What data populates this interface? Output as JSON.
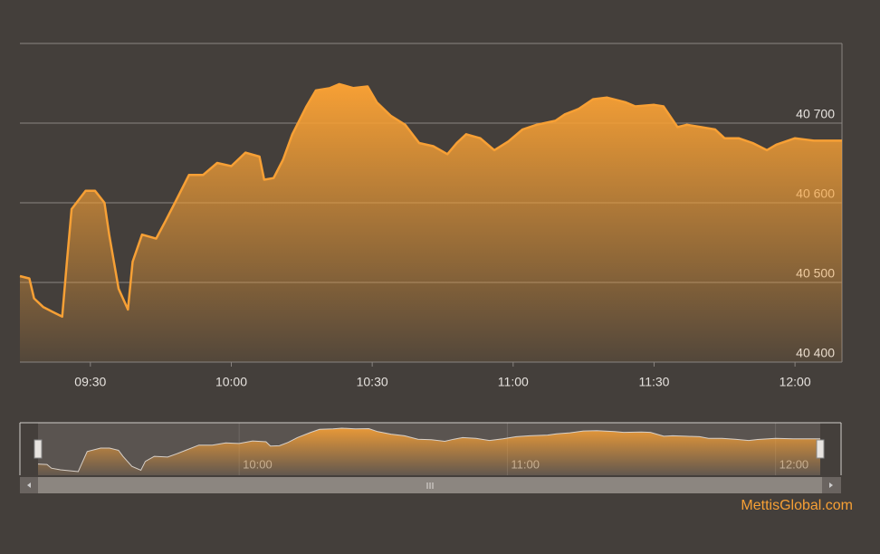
{
  "chart_data": {
    "type": "area",
    "x": [
      "09:15",
      "09:17",
      "09:18",
      "09:20",
      "09:22",
      "09:24",
      "09:25",
      "09:26",
      "09:29",
      "09:31",
      "09:33",
      "09:34",
      "09:36",
      "09:38",
      "09:39",
      "09:41",
      "09:44",
      "09:46",
      "09:48",
      "09:51",
      "09:54",
      "09:57",
      "10:00",
      "10:03",
      "10:06",
      "10:07",
      "10:09",
      "10:11",
      "10:13",
      "10:16",
      "10:18",
      "10:21",
      "10:23",
      "10:26",
      "10:29",
      "10:31",
      "10:34",
      "10:37",
      "10:40",
      "10:43",
      "10:46",
      "10:48",
      "10:50",
      "10:53",
      "10:56",
      "10:59",
      "11:02",
      "11:05",
      "11:09",
      "11:11",
      "11:14",
      "11:17",
      "11:20",
      "11:24",
      "11:26",
      "11:30",
      "11:32",
      "11:35",
      "11:37",
      "11:40",
      "11:43",
      "11:45",
      "11:48",
      "11:51",
      "11:54",
      "11:56",
      "12:00",
      "12:04",
      "12:10"
    ],
    "values": [
      40508,
      40505,
      40480,
      40469,
      40463,
      40457,
      40526,
      40592,
      40615,
      40615,
      40600,
      40560,
      40492,
      40466,
      40526,
      40560,
      40555,
      40577,
      40600,
      40635,
      40635,
      40650,
      40646,
      40663,
      40658,
      40629,
      40631,
      40654,
      40686,
      40721,
      40741,
      40744,
      40749,
      40744,
      40746,
      40726,
      40709,
      40698,
      40675,
      40671,
      40661,
      40675,
      40686,
      40681,
      40666,
      40677,
      40692,
      40698,
      40703,
      40711,
      40718,
      40730,
      40732,
      40726,
      40721,
      40723,
      40721,
      40695,
      40698,
      40695,
      40692,
      40681,
      40681,
      40675,
      40666,
      40673,
      40681,
      40678,
      40678
    ],
    "color": "#f7a035",
    "xlim": [
      "09:15",
      "12:10"
    ],
    "xticks": [
      "09:30",
      "10:00",
      "10:30",
      "11:00",
      "11:30",
      "12:00"
    ],
    "ylim": [
      40400,
      40800
    ],
    "yticks": [
      {
        "value": 40400,
        "label": "40 400"
      },
      {
        "value": 40500,
        "label": "40 500"
      },
      {
        "value": 40600,
        "label": "40 600"
      },
      {
        "value": 40700,
        "label": "40 700"
      }
    ],
    "grid": true,
    "navigator_xticks": [
      "10:00",
      "11:00",
      "12:00"
    ],
    "credit": "MettisGlobal.com"
  }
}
